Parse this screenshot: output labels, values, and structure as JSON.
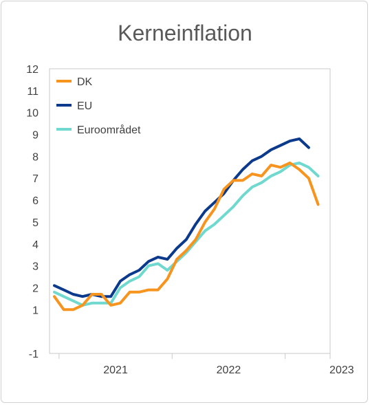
{
  "chart_data": {
    "type": "line",
    "title": "Kerneinflation",
    "xlabel": "",
    "ylabel": "",
    "ylim": [
      -1,
      12
    ],
    "yticks": [
      12,
      11,
      10,
      9,
      8,
      7,
      6,
      5,
      4,
      3,
      2,
      1,
      -1
    ],
    "xticks": [
      "2021",
      "2022",
      "2023"
    ],
    "grid": false,
    "legend_position": "top-left",
    "x_start": "2020-12",
    "x_end": "2023-11",
    "series": [
      {
        "name": "DK",
        "color": "#F7941D",
        "values": [
          1.6,
          1.0,
          1.0,
          1.2,
          1.7,
          1.7,
          1.2,
          1.3,
          1.8,
          1.8,
          1.9,
          1.9,
          2.4,
          3.3,
          3.7,
          4.2,
          5.0,
          5.6,
          6.5,
          6.9,
          6.9,
          7.2,
          7.1,
          7.6,
          7.5,
          7.7,
          7.4,
          7.0,
          5.8
        ]
      },
      {
        "name": "EU",
        "color": "#0B3A8C",
        "values": [
          2.1,
          1.9,
          1.7,
          1.6,
          1.7,
          1.6,
          1.6,
          2.3,
          2.6,
          2.8,
          3.2,
          3.4,
          3.3,
          3.8,
          4.2,
          4.9,
          5.5,
          5.9,
          6.3,
          6.9,
          7.4,
          7.8,
          8.0,
          8.3,
          8.5,
          8.7,
          8.8,
          8.4
        ]
      },
      {
        "name": "Euroområdet",
        "color": "#6FD8CF",
        "values": [
          1.8,
          1.6,
          1.4,
          1.2,
          1.3,
          1.3,
          1.3,
          2.0,
          2.3,
          2.5,
          3.0,
          3.1,
          2.8,
          3.2,
          3.6,
          4.1,
          4.6,
          4.9,
          5.3,
          5.7,
          6.2,
          6.6,
          6.8,
          7.1,
          7.3,
          7.6,
          7.7,
          7.5,
          7.1
        ]
      }
    ]
  }
}
